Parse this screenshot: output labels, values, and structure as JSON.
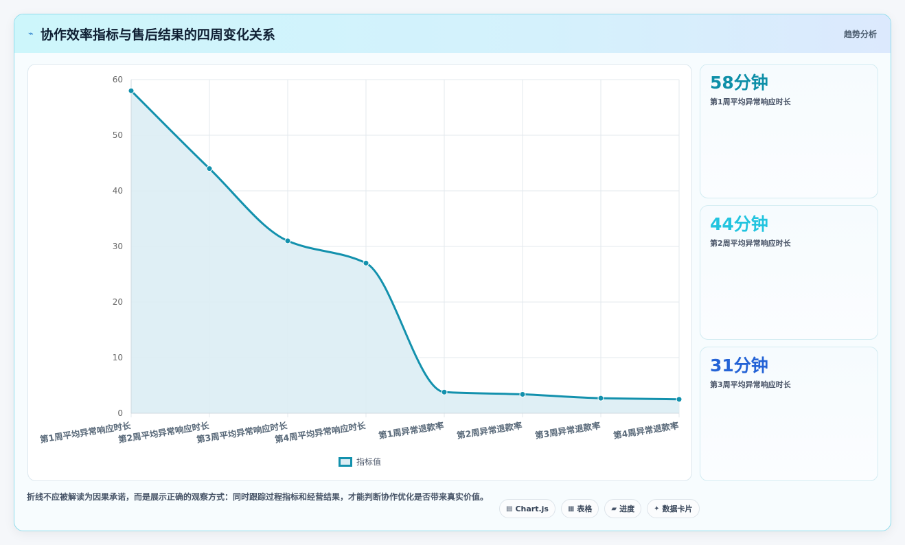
{
  "header": {
    "title": "协作效率指标与售后结果的四周变化关系",
    "tag": "趋势分析"
  },
  "chart_data": {
    "type": "line",
    "categories": [
      "第1周平均异常响应时长",
      "第2周平均异常响应时长",
      "第3周平均异常响应时长",
      "第4周平均异常响应时长",
      "第1周异常退款率",
      "第2周异常退款率",
      "第3周异常退款率",
      "第4周异常退款率"
    ],
    "series": [
      {
        "name": "指标值",
        "values": [
          58,
          44,
          31,
          27,
          3.8,
          3.4,
          2.7,
          2.5
        ]
      }
    ],
    "ylim": [
      0,
      60
    ],
    "yticks": [
      0,
      10,
      20,
      30,
      40,
      50,
      60
    ],
    "grid": true,
    "fill": true,
    "legend": "bottom",
    "colors": {
      "line": "#1391ad",
      "fill": "#dcedf4",
      "grid": "#e3e8ee"
    }
  },
  "stats": [
    {
      "value": "58分钟",
      "label": "第1周平均异常响应时长",
      "color": "#0e8fa8"
    },
    {
      "value": "44分钟",
      "label": "第2周平均异常响应时长",
      "color": "#22c4df"
    },
    {
      "value": "31分钟",
      "label": "第3周平均异常响应时长",
      "color": "#2463d6"
    }
  ],
  "footer": {
    "text": "折线不应被解读为因果承诺，而是展示正确的观察方式：同时跟踪过程指标和经营结果，才能判断协作优化是否带来真实价值。",
    "pills": [
      {
        "icon": "▤",
        "label": "Chart.js"
      },
      {
        "icon": "▦",
        "label": "表格"
      },
      {
        "icon": "▰",
        "label": "进度"
      },
      {
        "icon": "✦",
        "label": "数据卡片"
      }
    ]
  }
}
